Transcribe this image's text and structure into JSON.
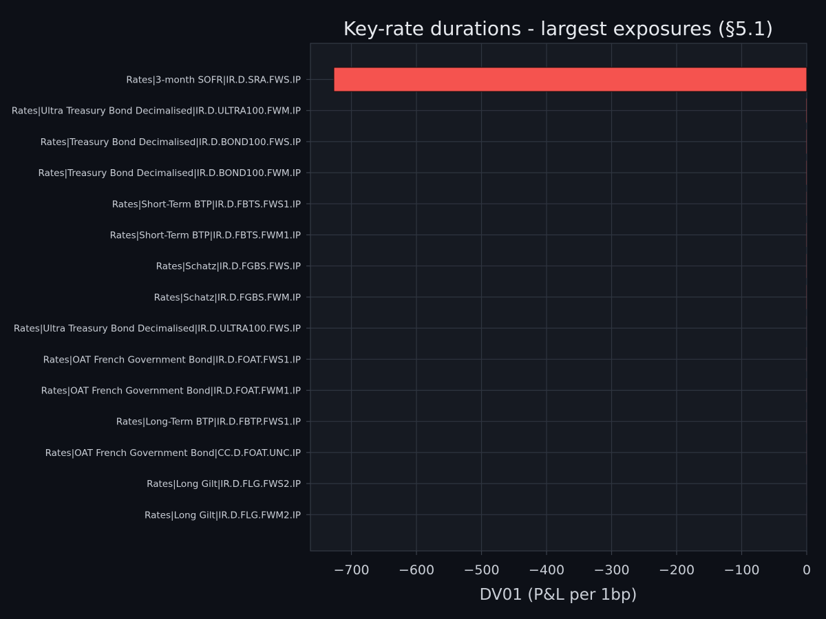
{
  "chart_data": {
    "type": "bar",
    "orientation": "horizontal",
    "title": "Key-rate durations - largest exposures (§5.1)",
    "xlabel": "DV01 (P&L per 1bp)",
    "ylabel": "",
    "xlim": [
      -763,
      0
    ],
    "xticks": [
      -700,
      -600,
      -500,
      -400,
      -300,
      -200,
      -100,
      0
    ],
    "xtick_labels": [
      "−700",
      "−600",
      "−500",
      "−400",
      "−300",
      "−200",
      "−100",
      "0"
    ],
    "grid": true,
    "categories": [
      "Rates|3-month SOFR|IR.D.SRA.FWS.IP",
      "Rates|Ultra Treasury Bond Decimalised|IR.D.ULTRA100.FWM.IP",
      "Rates|Treasury Bond Decimalised|IR.D.BOND100.FWS.IP",
      "Rates|Treasury Bond Decimalised|IR.D.BOND100.FWM.IP",
      "Rates|Short-Term BTP|IR.D.FBTS.FWS1.IP",
      "Rates|Short-Term BTP|IR.D.FBTS.FWM1.IP",
      "Rates|Schatz|IR.D.FGBS.FWS.IP",
      "Rates|Schatz|IR.D.FGBS.FWM.IP",
      "Rates|Ultra Treasury Bond Decimalised|IR.D.ULTRA100.FWS.IP",
      "Rates|OAT French Government Bond|IR.D.FOAT.FWS1.IP",
      "Rates|OAT French Government Bond|IR.D.FOAT.FWM1.IP",
      "Rates|Long-Term BTP|IR.D.FBTP.FWS1.IP",
      "Rates|OAT French Government Bond|CC.D.FOAT.UNC.IP",
      "Rates|Long Gilt|IR.D.FLG.FWS2.IP",
      "Rates|Long Gilt|IR.D.FLG.FWM2.IP"
    ],
    "values": [
      -727,
      -0.4,
      -0.3,
      -0.3,
      -0.2,
      -0.2,
      -0.2,
      -0.2,
      -0.1,
      -0.1,
      -0.1,
      -0.1,
      -0.1,
      -0.05,
      -0.05
    ],
    "colors": {
      "bar": "#f5534f",
      "plot_bg": "#161a22",
      "grid": "#2f3540",
      "axis": "#3b414c"
    }
  }
}
